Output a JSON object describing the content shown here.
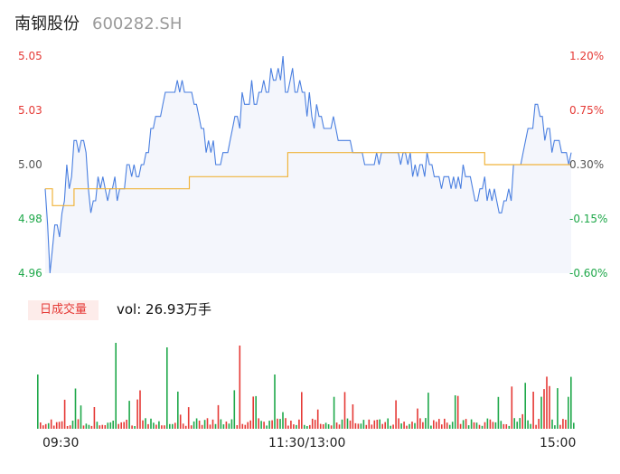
{
  "stock": {
    "name": "南钢股份",
    "code": "600282.SH"
  },
  "colors": {
    "price_line": "#4a7fe0",
    "avg_line": "#f0b43c",
    "up": "#e53935",
    "down": "#1fa84a",
    "neutral": "#555555",
    "area": "#f4f6fc"
  },
  "y_axis_left": [
    "5.05",
    "5.03",
    "5.00",
    "4.98",
    "4.96"
  ],
  "y_axis_right": [
    "1.20%",
    "0.75%",
    "0.30%",
    "-0.15%",
    "-0.60%"
  ],
  "volume": {
    "badge": "日成交量",
    "summary": "vol: 26.93万手"
  },
  "x_axis": [
    "09:30",
    "11:30/13:00",
    "15:00"
  ],
  "chart_data": [
    {
      "type": "line",
      "title": "",
      "series": [],
      "ylim": [
        4.96,
        5.05
      ],
      "y_ticks": [
        "5.05",
        "5.03",
        "5.00",
        "4.98",
        "4.96"
      ],
      "y2_ticks": [
        "1.20%",
        "0.75%",
        "0.30%",
        "-0.15%",
        "-0.60%"
      ],
      "x_ticks": [
        "09:30",
        "11:30/13:00",
        "15:00"
      ],
      "price_keypoints": [
        [
          0,
          4.995
        ],
        [
          2,
          4.96
        ],
        [
          4,
          4.98
        ],
        [
          6,
          4.98
        ],
        [
          9,
          4.998
        ],
        [
          10,
          4.995
        ],
        [
          13,
          5.015
        ],
        [
          17,
          5.01
        ],
        [
          19,
          4.985
        ],
        [
          22,
          5.0
        ],
        [
          27,
          4.995
        ],
        [
          32,
          4.995
        ],
        [
          35,
          5.0
        ],
        [
          39,
          5.0
        ],
        [
          44,
          5.02
        ],
        [
          47,
          5.025
        ],
        [
          51,
          5.035
        ],
        [
          55,
          5.04
        ],
        [
          60,
          5.035
        ],
        [
          66,
          5.02
        ],
        [
          69,
          5.01
        ],
        [
          74,
          5.005
        ],
        [
          80,
          5.025
        ],
        [
          83,
          5.03
        ],
        [
          88,
          5.035
        ],
        [
          96,
          5.045
        ],
        [
          102,
          5.04
        ],
        [
          110,
          5.03
        ],
        [
          117,
          5.02
        ],
        [
          125,
          5.015
        ],
        [
          135,
          5.005
        ],
        [
          145,
          5.01
        ],
        [
          155,
          5.005
        ],
        [
          165,
          5.0
        ],
        [
          175,
          5.0
        ],
        [
          182,
          4.995
        ],
        [
          190,
          4.985
        ],
        [
          195,
          5.0
        ],
        [
          201,
          5.02
        ],
        [
          206,
          5.025
        ],
        [
          212,
          5.015
        ],
        [
          217,
          5.01
        ],
        [
          219,
          5.01
        ]
      ],
      "avg_keypoints": [
        [
          0,
          4.995
        ],
        [
          2,
          4.995
        ],
        [
          3,
          4.988
        ],
        [
          11,
          4.988
        ],
        [
          12,
          4.995
        ],
        [
          59,
          4.995
        ],
        [
          60,
          5.0
        ],
        [
          100,
          5.0
        ],
        [
          101,
          5.01
        ],
        [
          182,
          5.01
        ],
        [
          183,
          5.005
        ],
        [
          219,
          5.005
        ]
      ],
      "volume_max": 100
    }
  ]
}
